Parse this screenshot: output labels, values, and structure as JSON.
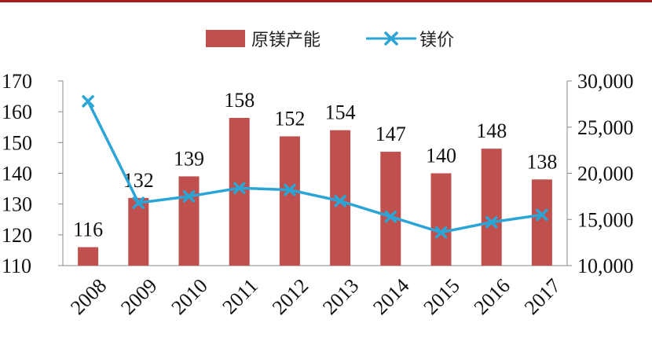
{
  "chart_data": {
    "type": "bar",
    "categories": [
      "2008",
      "2009",
      "2010",
      "2011",
      "2012",
      "2013",
      "2014",
      "2015",
      "2016",
      "2017"
    ],
    "series": [
      {
        "name": "原镁产能",
        "type": "bar",
        "axis": "left",
        "color": "#c0504d",
        "values": [
          116,
          132,
          139,
          158,
          152,
          154,
          147,
          140,
          148,
          138
        ]
      },
      {
        "name": "镁价",
        "type": "line",
        "axis": "right",
        "color": "#2ba5d6",
        "marker": "x",
        "values": [
          27800,
          16800,
          17500,
          18400,
          18200,
          17000,
          15300,
          13600,
          14700,
          15500
        ]
      }
    ],
    "left_axis": {
      "ylim": [
        110,
        170
      ],
      "ticks": [
        "110",
        "120",
        "130",
        "140",
        "150",
        "160",
        "170"
      ]
    },
    "right_axis": {
      "ylim": [
        10000,
        30000
      ],
      "ticks": [
        "10,000",
        "15,000",
        "20,000",
        "25,000",
        "30,000"
      ]
    },
    "data_labels": [
      "116",
      "132",
      "139",
      "158",
      "152",
      "154",
      "147",
      "140",
      "148",
      "138"
    ],
    "legend": "top-center",
    "grid": false
  }
}
